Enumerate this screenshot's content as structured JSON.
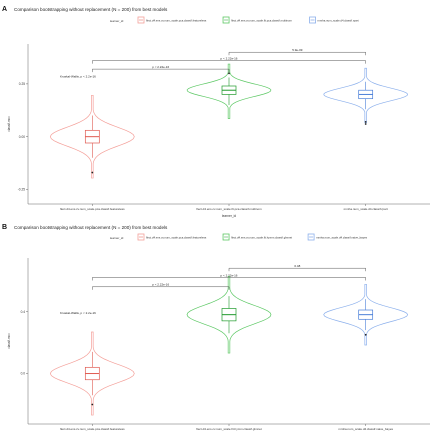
{
  "chart_data": [
    {
      "panel_label": "A",
      "type": "violin",
      "title": "Comparison bootstrapping without replacement (N = 200) from best models",
      "legend_title": "learner_id",
      "legend_position": "top",
      "legend_labels": [
        "flect.d4.ens.cv.num_scale.pca.classif.featureless",
        "flect.d4.ens.cv.num_scale.fit.pca.classif.multinom",
        "mmha.num_scale.d4.classif.rpart"
      ],
      "series_colors": [
        "#f4a09a",
        "#5cc864",
        "#8cb0ec"
      ],
      "xlabel": "learner_id",
      "ylabel": "classif.mcc",
      "categories": [
        "flect.d4.ens.cv.num_scale.pca.classif.featureless",
        "flect.d4.ens.cv.num_scale.fit.pca.classif.multinom",
        "mmha.num_scale.d4.classif.rpart"
      ],
      "yticks": [
        "-0.25",
        "0.00",
        "0.25"
      ],
      "ytick_values": [
        -0.25,
        0.0,
        0.25
      ],
      "ylim": [
        -0.3,
        0.42
      ],
      "grid": false,
      "kruskal_label": "Kruskal-Wallis, p < 2.2e-16",
      "groups": [
        {
          "median": 0.0,
          "q1": -0.03,
          "q3": 0.03,
          "min": -0.1,
          "max": 0.1,
          "outliers": [
            -0.17
          ]
        },
        {
          "median": 0.22,
          "q1": 0.2,
          "q3": 0.24,
          "min": 0.15,
          "max": 0.28,
          "outliers": [
            0.3
          ]
        },
        {
          "median": 0.2,
          "q1": 0.18,
          "q3": 0.22,
          "min": 0.13,
          "max": 0.26,
          "outliers": [
            0.06,
            0.07
          ]
        }
      ],
      "comparisons": [
        {
          "from": 0,
          "to": 1,
          "label": "p < 2.22e-16",
          "y": 0.32
        },
        {
          "from": 0,
          "to": 2,
          "label": "p < 2.22e-16",
          "y": 0.36
        },
        {
          "from": 1,
          "to": 2,
          "label": "5.9e-09",
          "y": 0.4
        }
      ]
    },
    {
      "panel_label": "B",
      "type": "violin",
      "title": "Comparison bootstrapping without replacement (N = 200) from best models",
      "legend_title": "learner_id",
      "legend_position": "top",
      "legend_labels": [
        "flect.d4.ens.cv.num_scale.pca.classif.featureless",
        "flect.d4.ens.cv.num_scale.fit.hymm.classif.glmnet",
        "mmha.num_scale.d4.classif.naive_bayes"
      ],
      "series_colors": [
        "#f4a09a",
        "#5cc864",
        "#8cb0ec"
      ],
      "xlabel": "",
      "ylabel": "classif.mcc",
      "categories": [
        "flect.d4.ens.cv.num_scale.pca.classif.featureless",
        "flect.d4.ens.cv.num_scale.fit.hymm.classif.glmnet",
        "mmha.num_scale.d4.classif.naive_bayes"
      ],
      "yticks": [
        "0.0",
        "0.4"
      ],
      "ytick_values": [
        0.0,
        0.4
      ],
      "ylim": [
        -0.3,
        0.72
      ],
      "grid": false,
      "kruskal_label": "Kruskal-Wallis, p < 2.2e-16",
      "groups": [
        {
          "median": 0.0,
          "q1": -0.04,
          "q3": 0.04,
          "min": -0.14,
          "max": 0.14,
          "outliers": [
            -0.2
          ]
        },
        {
          "median": 0.38,
          "q1": 0.34,
          "q3": 0.42,
          "min": 0.26,
          "max": 0.5,
          "outliers": []
        },
        {
          "median": 0.38,
          "q1": 0.35,
          "q3": 0.41,
          "min": 0.28,
          "max": 0.48,
          "outliers": [
            0.25
          ]
        }
      ],
      "comparisons": [
        {
          "from": 0,
          "to": 1,
          "label": "p < 2.22e-16",
          "y": 0.56
        },
        {
          "from": 0,
          "to": 2,
          "label": "p < 2.22e-16",
          "y": 0.62
        },
        {
          "from": 1,
          "to": 2,
          "label": "0.48",
          "y": 0.68
        }
      ]
    }
  ]
}
